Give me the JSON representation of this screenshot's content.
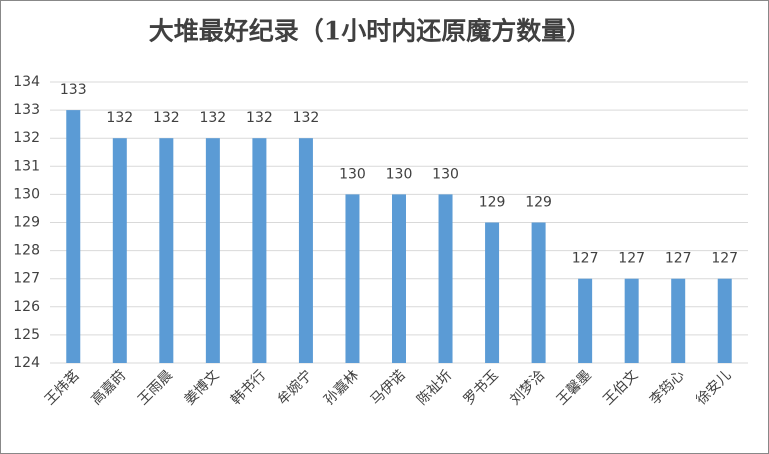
{
  "chart_data": {
    "type": "bar",
    "title": "大堆最好纪录（1小时内还原魔方数量）",
    "categories": [
      "王炜茗",
      "高嘉莳",
      "王雨晨",
      "姜博文",
      "韩书行",
      "牟婉宁",
      "孙嘉林",
      "马伊诺",
      "陈祉圻",
      "罗书玉",
      "刘梦洽",
      "王馨墨",
      "王伯文",
      "李筠心",
      "徐安儿"
    ],
    "values": [
      133,
      132,
      132,
      132,
      132,
      132,
      130,
      130,
      130,
      129,
      129,
      127,
      127,
      127,
      127
    ],
    "color": "#5b9bd5",
    "ylim": [
      124,
      134
    ],
    "yticks": [
      124,
      125,
      126,
      127,
      128,
      129,
      130,
      131,
      132,
      133,
      134
    ],
    "grid": true
  }
}
